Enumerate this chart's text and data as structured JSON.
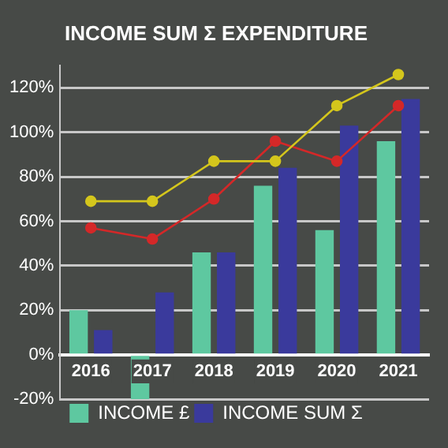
{
  "chart_data": {
    "type": "bar",
    "title": "INCOME SUM Σ EXPENDITURE",
    "categories": [
      "2016",
      "2017",
      "2018",
      "2019",
      "2020",
      "2021"
    ],
    "series": [
      {
        "name": "INCOME £",
        "color": "#5ec8a0",
        "values": [
          20,
          -20,
          46,
          76,
          56,
          96
        ]
      },
      {
        "name": "INCOME SUM Σ",
        "color": "#3a3a9c",
        "values": [
          11,
          28,
          46,
          84,
          103,
          115
        ]
      },
      {
        "type": "line",
        "color": "#d4c61c",
        "values": [
          69,
          69,
          87,
          87,
          112,
          126
        ]
      },
      {
        "type": "line",
        "color": "#d42828",
        "values": [
          57,
          52,
          70,
          96,
          87,
          112
        ]
      }
    ],
    "ylim": [
      -20,
      130
    ],
    "yticks": [
      {
        "value": -20,
        "label": "-20%"
      },
      {
        "value": 0,
        "label": "0%"
      },
      {
        "value": 20,
        "label": "20%"
      },
      {
        "value": 40,
        "label": "40%"
      },
      {
        "value": 60,
        "label": "60%"
      },
      {
        "value": 80,
        "label": "80%"
      },
      {
        "value": 100,
        "label": "100%"
      },
      {
        "value": 120,
        "label": "120%"
      }
    ],
    "grid": "y",
    "legend": "bottom",
    "marker": "circle"
  }
}
